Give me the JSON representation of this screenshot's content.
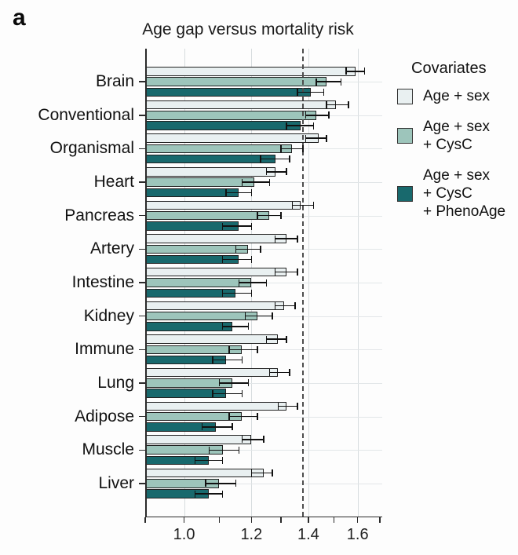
{
  "panel_label": "a",
  "title": "Age gap versus mortality risk",
  "legend": {
    "title": "Covariates",
    "items": [
      {
        "label": "Age + sex",
        "color": "#e9f0f1"
      },
      {
        "label": "Age + sex\n+ CysC",
        "color": "#9dc5bb"
      },
      {
        "label": "Age + sex\n+ CysC\n+ PhenoAge",
        "color": "#18696d"
      }
    ]
  },
  "colors": {
    "bar_border": "#212121",
    "grid": "#d7dcde",
    "reference_line": "#4d4d4d",
    "spine": "#2a2a2a"
  },
  "chart_data": {
    "type": "bar",
    "orientation": "horizontal",
    "title": "Age gap versus mortality risk",
    "xlabel": "",
    "ylabel": "",
    "xscale": "log",
    "xmin": 0.9,
    "xmax": 1.71,
    "xticks": [
      1.0,
      1.2,
      1.4,
      1.6
    ],
    "minor_xticks": [
      0.9,
      1.0,
      1.1,
      1.2,
      1.3,
      1.4,
      1.5,
      1.6,
      1.7
    ],
    "reference_line_x": 1.38,
    "grid": {
      "vertical": true,
      "horizontal": true
    },
    "legend_position": "right",
    "categories": [
      "Brain",
      "Conventional",
      "Organismal",
      "Heart",
      "Pancreas",
      "Artery",
      "Intestine",
      "Kidney",
      "Immune",
      "Lung",
      "Adipose",
      "Muscle",
      "Liver"
    ],
    "series": [
      {
        "name": "Age + sex",
        "color": "#e9f0f1",
        "values": [
          1.59,
          1.51,
          1.44,
          1.28,
          1.37,
          1.32,
          1.32,
          1.31,
          1.29,
          1.29,
          1.32,
          1.2,
          1.24
        ],
        "err_lo": [
          1.55,
          1.47,
          1.39,
          1.25,
          1.34,
          1.28,
          1.28,
          1.28,
          1.25,
          1.26,
          1.29,
          1.17,
          1.2
        ],
        "err_hi": [
          1.63,
          1.56,
          1.47,
          1.32,
          1.42,
          1.36,
          1.36,
          1.35,
          1.32,
          1.33,
          1.36,
          1.24,
          1.27
        ]
      },
      {
        "name": "Age + sex + CysC",
        "color": "#9dc5bb",
        "values": [
          1.47,
          1.43,
          1.34,
          1.21,
          1.26,
          1.19,
          1.2,
          1.22,
          1.17,
          1.14,
          1.17,
          1.11,
          1.1
        ],
        "err_lo": [
          1.43,
          1.39,
          1.3,
          1.17,
          1.22,
          1.15,
          1.16,
          1.18,
          1.13,
          1.1,
          1.13,
          1.07,
          1.06
        ],
        "err_hi": [
          1.53,
          1.48,
          1.38,
          1.26,
          1.3,
          1.23,
          1.25,
          1.27,
          1.22,
          1.19,
          1.22,
          1.16,
          1.15
        ]
      },
      {
        "name": "Age + sex + CysC + PhenoAge",
        "color": "#18696d",
        "values": [
          1.41,
          1.37,
          1.28,
          1.16,
          1.16,
          1.16,
          1.15,
          1.14,
          1.12,
          1.12,
          1.09,
          1.07,
          1.07
        ],
        "err_lo": [
          1.36,
          1.32,
          1.23,
          1.12,
          1.11,
          1.11,
          1.11,
          1.11,
          1.08,
          1.08,
          1.05,
          1.03,
          1.03
        ],
        "err_hi": [
          1.46,
          1.42,
          1.33,
          1.2,
          1.2,
          1.2,
          1.2,
          1.19,
          1.17,
          1.17,
          1.14,
          1.11,
          1.11
        ]
      }
    ]
  }
}
